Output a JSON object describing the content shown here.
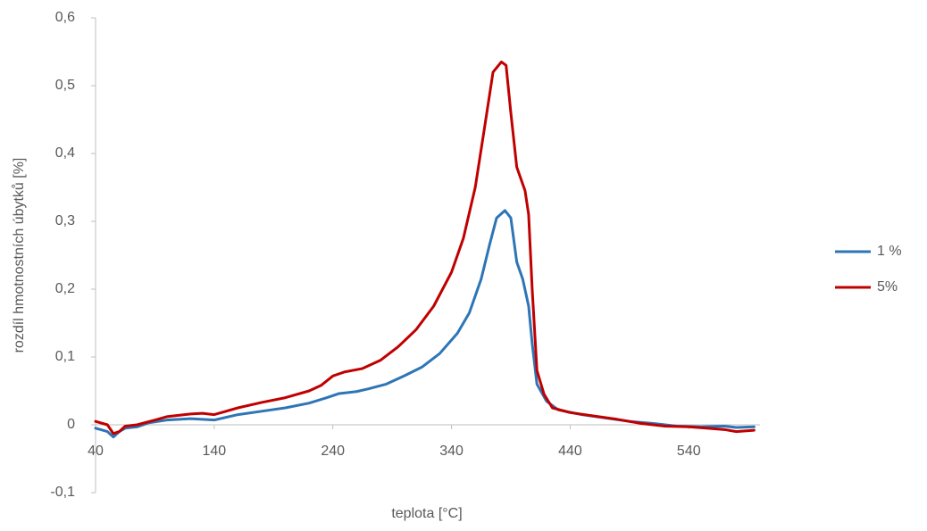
{
  "chart_data": {
    "type": "line",
    "x_label": "teplota [°C]",
    "y_label": "rozdíl hmotnostních úbytků [%]",
    "xlim": [
      40,
      600
    ],
    "xticks": [
      40,
      140,
      240,
      340,
      440,
      540
    ],
    "ylim": [
      -0.1,
      0.6
    ],
    "yticks": [
      {
        "value": -0.1,
        "label": "-0,1"
      },
      0,
      {
        "value": 0.1,
        "label": "0,1"
      },
      {
        "value": 0.2,
        "label": "0,2"
      },
      {
        "value": 0.3,
        "label": "0,3"
      },
      {
        "value": 0.4,
        "label": "0,4"
      },
      {
        "value": 0.5,
        "label": "0,5"
      },
      {
        "value": 0.6,
        "label": "0,6"
      }
    ],
    "grid": false,
    "legend": "right",
    "series": [
      {
        "name": "1 %",
        "color": "#2e75b6",
        "x": [
          40,
          50,
          55,
          60,
          65,
          75,
          85,
          100,
          120,
          140,
          160,
          180,
          200,
          220,
          235,
          245,
          260,
          270,
          285,
          300,
          315,
          330,
          345,
          355,
          365,
          372,
          378,
          385,
          390,
          395,
          400,
          405,
          408,
          412,
          420,
          430,
          450,
          470,
          490,
          510,
          530,
          550,
          570,
          580,
          595
        ],
        "values": [
          -0.005,
          -0.01,
          -0.018,
          -0.01,
          -0.005,
          -0.003,
          0.003,
          0.007,
          0.009,
          0.007,
          0.015,
          0.02,
          0.025,
          0.032,
          0.04,
          0.046,
          0.049,
          0.053,
          0.06,
          0.072,
          0.085,
          0.105,
          0.135,
          0.165,
          0.215,
          0.265,
          0.305,
          0.316,
          0.305,
          0.24,
          0.215,
          0.175,
          0.12,
          0.06,
          0.035,
          0.022,
          0.015,
          0.01,
          0.005,
          0.002,
          -0.002,
          -0.003,
          -0.002,
          -0.004,
          -0.003
        ]
      },
      {
        "name": "5%",
        "color": "#c00000",
        "x": [
          40,
          50,
          55,
          60,
          65,
          75,
          90,
          100,
          120,
          130,
          140,
          160,
          180,
          200,
          220,
          230,
          240,
          250,
          265,
          280,
          295,
          310,
          325,
          340,
          350,
          360,
          368,
          375,
          382,
          386,
          390,
          395,
          402,
          405,
          408,
          412,
          418,
          425,
          440,
          460,
          480,
          500,
          520,
          540,
          555,
          570,
          580,
          595
        ],
        "values": [
          0.005,
          0.0,
          -0.013,
          -0.01,
          -0.002,
          0.0,
          0.007,
          0.012,
          0.016,
          0.017,
          0.015,
          0.025,
          0.033,
          0.04,
          0.05,
          0.058,
          0.072,
          0.078,
          0.083,
          0.095,
          0.115,
          0.14,
          0.175,
          0.225,
          0.275,
          0.35,
          0.44,
          0.52,
          0.535,
          0.53,
          0.46,
          0.38,
          0.345,
          0.31,
          0.2,
          0.08,
          0.045,
          0.025,
          0.018,
          0.013,
          0.008,
          0.002,
          -0.002,
          -0.003,
          -0.005,
          -0.007,
          -0.01,
          -0.008
        ]
      }
    ]
  }
}
